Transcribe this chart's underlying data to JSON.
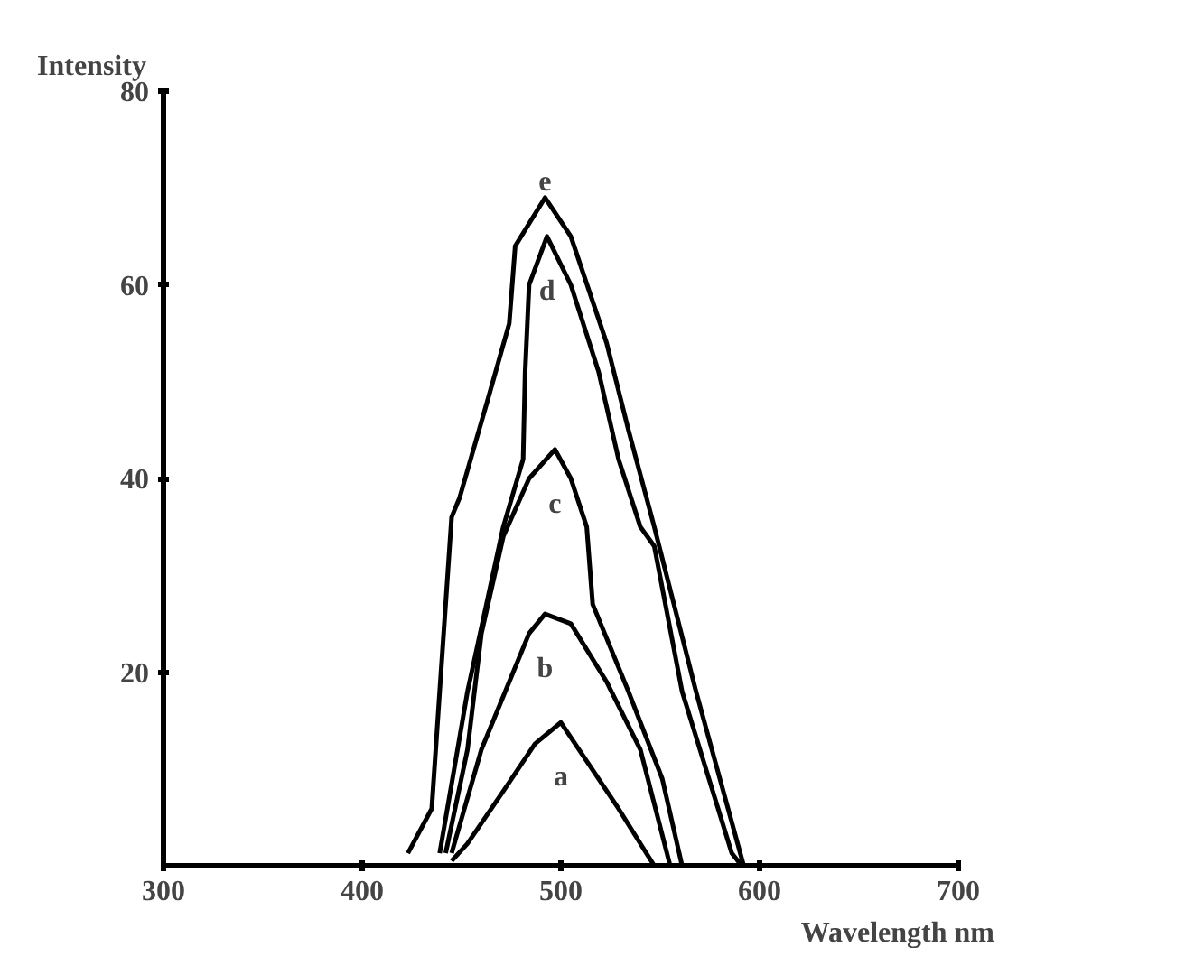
{
  "chart_data": {
    "type": "line",
    "ylabel": "Intensity",
    "xlabel": "Wavelength nm",
    "xlim": [
      300,
      700
    ],
    "ylim": [
      0,
      80
    ],
    "xticks": [
      300,
      400,
      500,
      600,
      700
    ],
    "yticks": [
      20,
      40,
      60,
      80
    ],
    "grid": false,
    "marker": "none",
    "line_style": "solid",
    "series": [
      {
        "name": "a",
        "color": "#000000",
        "x": [
          445,
          453,
          471,
          487,
          500,
          513,
          529,
          547
        ],
        "values": [
          0.5,
          2.3,
          7.7,
          12.6,
          14.8,
          10.8,
          5.9,
          0
        ]
      },
      {
        "name": "b",
        "color": "#000000",
        "x": [
          445,
          460,
          474,
          484,
          492,
          505,
          523,
          540,
          555
        ],
        "values": [
          1.3,
          12,
          19,
          24,
          26,
          25,
          19,
          12,
          0
        ]
      },
      {
        "name": "c",
        "color": "#000000",
        "x": [
          442,
          453,
          460,
          471,
          484,
          497,
          505,
          513,
          516,
          534,
          551,
          561
        ],
        "values": [
          1.3,
          12,
          24,
          34,
          40,
          43,
          40,
          35,
          27,
          18,
          9,
          0
        ]
      },
      {
        "name": "d",
        "color": "#000000",
        "x": [
          439,
          453,
          471,
          481,
          482,
          484,
          493,
          505,
          519,
          529,
          540,
          547,
          561,
          586,
          591
        ],
        "values": [
          1.3,
          18,
          35,
          42,
          51,
          60,
          65,
          60,
          51,
          42,
          35,
          33,
          18,
          1.3,
          0
        ]
      },
      {
        "name": "e",
        "color": "#000000",
        "x": [
          423,
          435,
          439,
          445,
          449,
          463,
          474,
          477,
          492,
          505,
          523,
          534,
          547,
          568,
          576,
          592
        ],
        "values": [
          1.3,
          5.9,
          18,
          36,
          38,
          48,
          56,
          64,
          69,
          65,
          54,
          45,
          35,
          18,
          12,
          0
        ]
      }
    ]
  }
}
